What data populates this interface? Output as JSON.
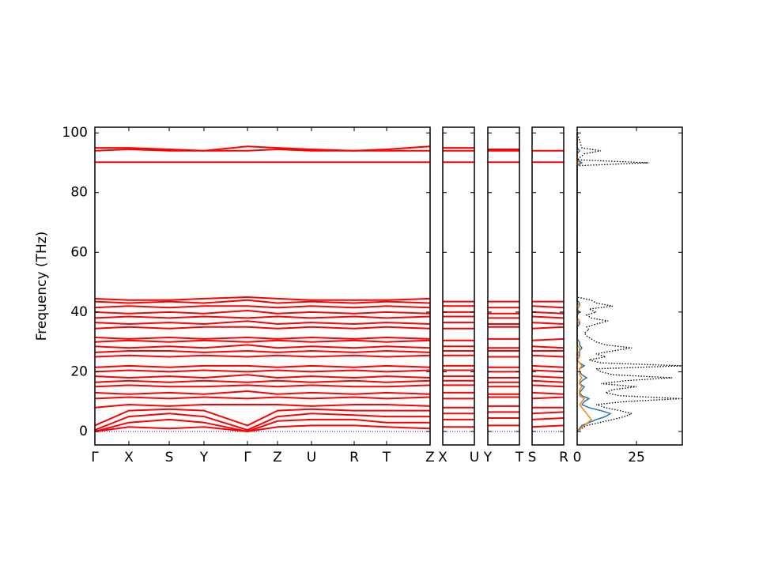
{
  "chart_data": [
    {
      "type": "band",
      "ylabel": "Frequency (THz)",
      "ytick_labels": true,
      "ylim": [
        -4.5,
        101.9
      ],
      "yticks": [
        0,
        20,
        40,
        60,
        80,
        100
      ],
      "xlim": [
        0,
        4.24
      ],
      "xticks": [
        {
          "value": 0,
          "label": "Γ"
        },
        {
          "value": 0.43,
          "label": "X"
        },
        {
          "value": 0.94,
          "label": "S"
        },
        {
          "value": 1.38,
          "label": "Y"
        },
        {
          "value": 1.93,
          "label": "Γ"
        },
        {
          "value": 2.31,
          "label": "Z"
        },
        {
          "value": 2.74,
          "label": "U"
        },
        {
          "value": 3.28,
          "label": "R"
        },
        {
          "value": 3.69,
          "label": "T"
        },
        {
          "value": 4.24,
          "label": "Z"
        }
      ],
      "x": [
        0,
        0.43,
        0.94,
        1.38,
        1.93,
        2.31,
        2.74,
        3.28,
        3.69,
        4.24
      ],
      "band_color": "#ff0000",
      "hline": 0,
      "hline_color": "#0000cc",
      "series": [
        {
          "values": [
            0,
            1.5,
            1,
            1.5,
            0,
            1.5,
            2,
            2,
            1.5,
            1
          ]
        },
        {
          "values": [
            0,
            3,
            4,
            3,
            0,
            3.5,
            4,
            4,
            3,
            3
          ]
        },
        {
          "values": [
            0.5,
            5,
            6,
            5,
            0.5,
            5,
            6,
            5.5,
            5,
            5
          ]
        },
        {
          "values": [
            2,
            7,
            7.5,
            7,
            2,
            7,
            7.5,
            7,
            7,
            7
          ]
        },
        {
          "values": [
            8,
            9,
            8.5,
            9,
            9,
            9,
            8.5,
            9,
            9,
            8.5
          ]
        },
        {
          "values": [
            11,
            11.5,
            11,
            11.5,
            11,
            11.5,
            11,
            11.5,
            11,
            11.5
          ]
        },
        {
          "values": [
            13,
            12.5,
            13,
            12.5,
            13.5,
            12.5,
            13,
            12.5,
            13,
            12.5
          ]
        },
        {
          "values": [
            15,
            15.5,
            15,
            15,
            15.5,
            15,
            15.5,
            15,
            15,
            15.5
          ]
        },
        {
          "values": [
            16.5,
            17,
            16.5,
            17,
            16.5,
            17,
            16.5,
            17,
            16.5,
            17
          ]
        },
        {
          "values": [
            18.5,
            18,
            18.5,
            18,
            19,
            18,
            18.5,
            18,
            18.5,
            18
          ]
        },
        {
          "values": [
            20,
            20.5,
            20,
            20.5,
            20,
            20.5,
            20,
            20.5,
            20,
            20.5
          ]
        },
        {
          "values": [
            21.5,
            22,
            21.5,
            22,
            22,
            21.5,
            22,
            21.5,
            22,
            21.5
          ]
        },
        {
          "values": [
            25,
            25.5,
            25,
            25.5,
            25,
            25.5,
            25,
            25.5,
            25,
            25.5
          ]
        },
        {
          "values": [
            26.5,
            27,
            27,
            26.5,
            27,
            26.5,
            27,
            26.5,
            27,
            26.5
          ]
        },
        {
          "values": [
            28.5,
            28,
            28.5,
            28,
            29,
            28,
            28.5,
            28,
            28.5,
            28
          ]
        },
        {
          "values": [
            30,
            30.5,
            30,
            30.5,
            30,
            30.5,
            30,
            30.5,
            30,
            30.5
          ]
        },
        {
          "values": [
            31.5,
            31,
            31.5,
            31,
            31.5,
            31,
            31.5,
            31,
            31.5,
            31
          ]
        },
        {
          "values": [
            34.5,
            35,
            34.5,
            35,
            35,
            34.5,
            35,
            34.5,
            35,
            34.5
          ]
        },
        {
          "values": [
            36.5,
            36,
            36.5,
            36,
            37,
            36,
            36.5,
            36,
            36.5,
            36
          ]
        },
        {
          "values": [
            38,
            38.5,
            38,
            38.5,
            38,
            38.5,
            38,
            38.5,
            38,
            38.5
          ]
        },
        {
          "values": [
            40,
            39.5,
            40,
            39.5,
            40.5,
            39.5,
            40,
            39.5,
            40,
            39.5
          ]
        },
        {
          "values": [
            41.5,
            42,
            41.5,
            42,
            42,
            41.5,
            42,
            41.5,
            42,
            41.5
          ]
        },
        {
          "values": [
            43.5,
            43,
            43.5,
            43,
            44,
            43,
            43.5,
            43,
            43.5,
            43
          ]
        },
        {
          "values": [
            44.5,
            44,
            44,
            44.5,
            45,
            44.5,
            44,
            44,
            44,
            44.5
          ]
        },
        {
          "values": [
            90.2,
            90.2,
            90.2,
            90.2,
            90.2,
            90.2,
            90.2,
            90.2,
            90.2,
            90.2
          ]
        },
        {
          "values": [
            94,
            94.5,
            94,
            94,
            94,
            94.5,
            94,
            94,
            94,
            94
          ]
        },
        {
          "values": [
            95,
            95,
            94.5,
            94,
            95.5,
            95,
            94.5,
            94,
            94.5,
            95.5
          ]
        }
      ]
    },
    {
      "type": "band",
      "ylim": [
        -4.5,
        101.9
      ],
      "yticks": [
        0,
        20,
        40,
        60,
        80,
        100
      ],
      "xlim": [
        0,
        0.4
      ],
      "xticks": [
        {
          "value": 0,
          "label": "X"
        },
        {
          "value": 0.4,
          "label": "U"
        }
      ],
      "x": [
        0,
        0.4
      ],
      "band_color": "#ff0000",
      "hline": 0,
      "hline_color": "#0000cc",
      "series": [
        {
          "values": [
            1.5,
            1.5
          ]
        },
        {
          "values": [
            4,
            4
          ]
        },
        {
          "values": [
            6,
            6
          ]
        },
        {
          "values": [
            8,
            8
          ]
        },
        {
          "values": [
            11,
            11
          ]
        },
        {
          "values": [
            13,
            13
          ]
        },
        {
          "values": [
            15.5,
            15.5
          ]
        },
        {
          "values": [
            17,
            17
          ]
        },
        {
          "values": [
            18.5,
            18.5
          ]
        },
        {
          "values": [
            20.5,
            20.5
          ]
        },
        {
          "values": [
            22,
            22
          ]
        },
        {
          "values": [
            25.5,
            25.5
          ]
        },
        {
          "values": [
            27,
            27
          ]
        },
        {
          "values": [
            28.5,
            28.5
          ]
        },
        {
          "values": [
            30.5,
            30.5
          ]
        },
        {
          "values": [
            34.5,
            34.5
          ]
        },
        {
          "values": [
            36.5,
            36.5
          ]
        },
        {
          "values": [
            38.5,
            38.5
          ]
        },
        {
          "values": [
            40,
            40
          ]
        },
        {
          "values": [
            42,
            42
          ]
        },
        {
          "values": [
            43.5,
            43.5
          ]
        },
        {
          "values": [
            90.2,
            90.2
          ]
        },
        {
          "values": [
            94,
            94
          ]
        },
        {
          "values": [
            95,
            95
          ]
        }
      ]
    },
    {
      "type": "band",
      "ylim": [
        -4.5,
        101.9
      ],
      "yticks": [
        0,
        20,
        40,
        60,
        80,
        100
      ],
      "xlim": [
        0,
        0.4
      ],
      "xticks": [
        {
          "value": 0,
          "label": "Y"
        },
        {
          "value": 0.4,
          "label": "T"
        }
      ],
      "x": [
        0,
        0.4
      ],
      "band_color": "#ff0000",
      "hline": 0,
      "hline_color": "#0000cc",
      "series": [
        {
          "values": [
            2,
            2
          ]
        },
        {
          "values": [
            4.5,
            4.5
          ]
        },
        {
          "values": [
            6.5,
            6.5
          ]
        },
        {
          "values": [
            8.5,
            8.5
          ]
        },
        {
          "values": [
            11.5,
            11.5
          ]
        },
        {
          "values": [
            12.5,
            12.5
          ]
        },
        {
          "values": [
            15,
            15
          ]
        },
        {
          "values": [
            16.5,
            16.5
          ]
        },
        {
          "values": [
            18,
            18
          ]
        },
        {
          "values": [
            20,
            20
          ]
        },
        {
          "values": [
            21.5,
            21.5
          ]
        },
        {
          "values": [
            25,
            25
          ]
        },
        {
          "values": [
            27,
            27
          ]
        },
        {
          "values": [
            28,
            28
          ]
        },
        {
          "values": [
            31,
            31
          ]
        },
        {
          "values": [
            35,
            35
          ]
        },
        {
          "values": [
            36,
            36
          ]
        },
        {
          "values": [
            38,
            38
          ]
        },
        {
          "values": [
            39.5,
            39.5
          ]
        },
        {
          "values": [
            41.5,
            41.5
          ]
        },
        {
          "values": [
            43.5,
            43.5
          ]
        },
        {
          "values": [
            90.2,
            90.2
          ]
        },
        {
          "values": [
            94,
            94
          ]
        },
        {
          "values": [
            94.5,
            94.5
          ]
        }
      ]
    },
    {
      "type": "band",
      "ylim": [
        -4.5,
        101.9
      ],
      "yticks": [
        0,
        20,
        40,
        60,
        80,
        100
      ],
      "xlim": [
        0,
        0.4
      ],
      "xticks": [
        {
          "value": 0,
          "label": "S"
        },
        {
          "value": 0.4,
          "label": "R"
        }
      ],
      "x": [
        0,
        0.4
      ],
      "band_color": "#ff0000",
      "hline": 0,
      "hline_color": "#0000cc",
      "series": [
        {
          "values": [
            1.5,
            2
          ]
        },
        {
          "values": [
            4,
            4.5
          ]
        },
        {
          "values": [
            6,
            6.5
          ]
        },
        {
          "values": [
            8,
            8
          ]
        },
        {
          "values": [
            11,
            11.5
          ]
        },
        {
          "values": [
            13,
            12.5
          ]
        },
        {
          "values": [
            15.5,
            15
          ]
        },
        {
          "values": [
            17,
            16.5
          ]
        },
        {
          "values": [
            18.5,
            18
          ]
        },
        {
          "values": [
            20.5,
            20
          ]
        },
        {
          "values": [
            22,
            21.5
          ]
        },
        {
          "values": [
            25.5,
            25
          ]
        },
        {
          "values": [
            27,
            27
          ]
        },
        {
          "values": [
            28.5,
            28
          ]
        },
        {
          "values": [
            30.5,
            31
          ]
        },
        {
          "values": [
            34.5,
            35
          ]
        },
        {
          "values": [
            36.5,
            36
          ]
        },
        {
          "values": [
            38.5,
            38
          ]
        },
        {
          "values": [
            40,
            39.5
          ]
        },
        {
          "values": [
            42,
            41.5
          ]
        },
        {
          "values": [
            43.5,
            43.5
          ]
        },
        {
          "values": [
            90.2,
            90.2
          ]
        },
        {
          "values": [
            94,
            94
          ]
        }
      ]
    },
    {
      "type": "dos",
      "ylim": [
        -4.5,
        101.9
      ],
      "yticks": [
        0,
        20,
        40,
        60,
        80,
        100
      ],
      "xlim": [
        0,
        44.3
      ],
      "xticks": [
        0,
        25
      ],
      "y": [
        0,
        2,
        4,
        5,
        6,
        7,
        8,
        9,
        10,
        11,
        12,
        13,
        14,
        15,
        16,
        17,
        18,
        19,
        20,
        21,
        22,
        23,
        24,
        25,
        26,
        27,
        28,
        29,
        30,
        31,
        32,
        33,
        34,
        35,
        36,
        37,
        38,
        39,
        40,
        41,
        42,
        43,
        44,
        45,
        50,
        89,
        90,
        91,
        93,
        94,
        95,
        100
      ],
      "series": [
        {
          "color": "#000000",
          "style": "dotted",
          "values": [
            0,
            4,
            15,
            20,
            23,
            18,
            12,
            8,
            20,
            44,
            18,
            12,
            15,
            25,
            10,
            20,
            40,
            15,
            10,
            8,
            44,
            10,
            5,
            12,
            8,
            15,
            23,
            12,
            8,
            6,
            4,
            3,
            5,
            4,
            8,
            13,
            6,
            4,
            8,
            5,
            15,
            8,
            6,
            0,
            0,
            0,
            30,
            0,
            3,
            10,
            2,
            0
          ]
        },
        {
          "color": "#1f77b4",
          "style": "solid",
          "values": [
            0,
            2,
            8,
            12,
            14,
            10,
            5,
            2,
            3,
            5,
            2,
            1,
            2,
            3,
            1,
            2,
            4,
            2,
            1,
            1,
            3,
            1,
            0,
            1,
            1,
            1,
            2,
            1,
            1,
            0,
            0,
            0,
            0,
            0,
            1,
            1,
            0,
            0,
            1,
            0,
            1,
            1,
            0,
            0,
            0,
            0,
            2,
            0,
            0,
            1,
            0,
            0
          ]
        },
        {
          "color": "#ff7f0e",
          "style": "solid",
          "values": [
            0,
            3,
            6,
            5,
            4,
            3,
            2,
            1,
            2,
            3,
            1,
            1,
            1,
            2,
            1,
            1,
            2,
            1,
            1,
            1,
            2,
            1,
            0,
            1,
            0,
            1,
            1,
            0,
            0,
            0,
            0,
            0,
            0,
            0,
            0,
            1,
            0,
            0,
            0,
            0,
            1,
            0,
            0,
            0,
            0,
            0,
            1,
            0,
            0,
            0,
            0,
            0
          ]
        }
      ]
    }
  ]
}
